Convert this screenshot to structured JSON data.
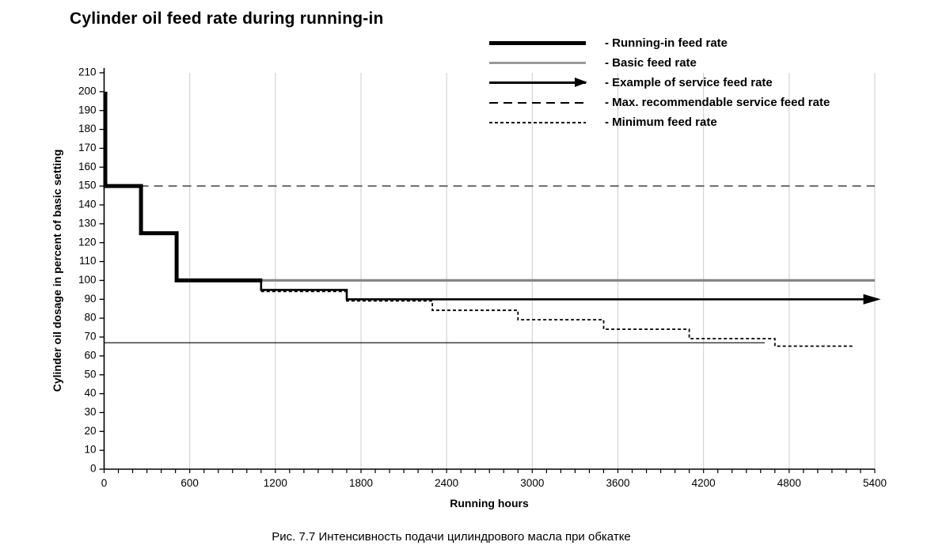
{
  "title": "Cylinder oil feed rate during running-in",
  "caption": "Рис. 7.7 Интенсивность подачи цилиндрового масла при обкатке",
  "legend": {
    "position": "top-right",
    "items": [
      {
        "label": "- Running-in feed rate",
        "swatch": "thick-solid-black"
      },
      {
        "label": "- Basic feed rate",
        "swatch": "solid-gray"
      },
      {
        "label": "- Example of service feed rate",
        "swatch": "solid-black-arrow"
      },
      {
        "label": "- Max. recommendable service feed rate",
        "swatch": "long-dash"
      },
      {
        "label": "- Minimum feed rate",
        "swatch": "short-dash"
      }
    ]
  },
  "chart_data": {
    "type": "line",
    "title": "Cylinder oil feed rate during running-in",
    "xlabel": "Running hours",
    "ylabel": "Cylinder oil dosage in percent of basic setting",
    "xlim": [
      0,
      5400
    ],
    "ylim": [
      0,
      210
    ],
    "x_major_ticks": [
      0,
      600,
      1200,
      1800,
      2400,
      3000,
      3600,
      4200,
      4800,
      5400
    ],
    "x_minor_tick_step": 100,
    "y_tick_step": 10,
    "grid": "vertical gridlines at every 600 running hours",
    "colors": {
      "grid": "#c9ccd0",
      "axis": "#000000",
      "basic": "#878787",
      "max_dash": "#6b6b6b",
      "black": "#000000"
    },
    "series": [
      {
        "name": "Max. recommendable service feed rate",
        "style": "long-dash",
        "points": [
          [
            250,
            150
          ],
          [
            5400,
            150
          ]
        ]
      },
      {
        "name": "Minimum baseline (unlabeled thin line)",
        "style": "thin-solid",
        "points": [
          [
            0,
            67
          ],
          [
            4630,
            67
          ]
        ]
      },
      {
        "name": "Basic feed rate",
        "style": "solid-gray",
        "points": [
          [
            1090,
            100
          ],
          [
            5400,
            100
          ]
        ]
      },
      {
        "name": "Minimum feed rate",
        "style": "short-dash",
        "points": [
          [
            1100,
            95
          ],
          [
            1700,
            95
          ],
          [
            1700,
            90
          ],
          [
            2300,
            90
          ],
          [
            2300,
            85
          ],
          [
            2900,
            85
          ],
          [
            2900,
            80
          ],
          [
            3500,
            80
          ],
          [
            3500,
            75
          ],
          [
            4100,
            75
          ],
          [
            4100,
            70
          ],
          [
            4700,
            70
          ],
          [
            4700,
            66
          ],
          [
            5250,
            66
          ]
        ]
      },
      {
        "name": "Example of service feed rate",
        "style": "solid-arrow",
        "points": [
          [
            1100,
            100
          ],
          [
            1100,
            95
          ],
          [
            1700,
            95
          ],
          [
            1700,
            90
          ],
          [
            5320,
            90
          ]
        ],
        "arrow_end": true
      },
      {
        "name": "Running-in feed rate",
        "style": "thick-solid",
        "points": [
          [
            0,
            200
          ],
          [
            0,
            150
          ],
          [
            250,
            150
          ],
          [
            250,
            125
          ],
          [
            500,
            125
          ],
          [
            500,
            100
          ],
          [
            1100,
            100
          ]
        ]
      }
    ]
  }
}
